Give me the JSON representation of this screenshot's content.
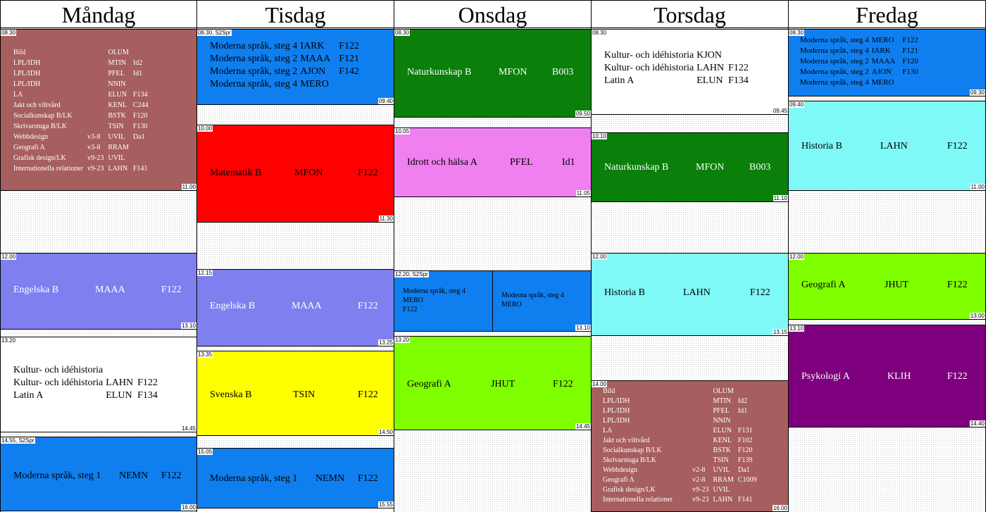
{
  "days": [
    "Måndag",
    "Tisdag",
    "Onsdag",
    "Torsdag",
    "Fredag"
  ],
  "colors": {
    "brown": "#a65e5e",
    "blue": "#0f7ff0",
    "periwinkle": "#7f7ff0",
    "white": "#ffffff",
    "red": "#ff0000",
    "yellow": "#ffff00",
    "green": "#0a7f0a",
    "pink": "#f07ff0",
    "lime": "#7fff00",
    "cyan": "#7ff8f8",
    "purple": "#7f007f"
  },
  "mon": {
    "b1": {
      "start": "08.30",
      "end": "11.00",
      "rows": [
        [
          "Bild",
          "",
          "OLUM",
          ""
        ],
        [
          "LPL/IDH",
          "",
          "MTIN",
          "Id2"
        ],
        [
          "LPL/IDH",
          "",
          "PFEL",
          "Id1"
        ],
        [
          "LPL/IDH",
          "",
          "NNIN",
          ""
        ],
        [
          "LA",
          "",
          "ELUN",
          "F134"
        ],
        [
          "Jakt och viltvård",
          "",
          "KENL",
          "C244"
        ],
        [
          "Socialkunskap B/LK",
          "",
          "BSTK",
          "F120"
        ],
        [
          "Skrivarstuga B/LK",
          "",
          "TSIN",
          "F130"
        ],
        [
          "Webbdesign",
          "v3-8",
          "UVIL",
          "Da1"
        ],
        [
          "Geografi A",
          "v3-8",
          "RRAM",
          ""
        ],
        [
          "Grafisk design/LK",
          "v9-23",
          "UVIL",
          ""
        ],
        [
          "Internationella relationer",
          "v9-23",
          "LAHN",
          "F141"
        ]
      ]
    },
    "b2": {
      "start": "12.00",
      "end": "13.10",
      "subj": "Engelska B",
      "teacher": "MAAA",
      "room": "F122"
    },
    "b3": {
      "start": "13.20",
      "end": "14.45",
      "rows": [
        [
          "Kultur- och idéhistoria",
          "",
          ""
        ],
        [
          "Kultur- och idéhistoria",
          "LAHN",
          "F122"
        ],
        [
          "Latin A",
          "ELUN",
          "F134"
        ]
      ]
    },
    "b4": {
      "start": "14.55, S2Spr",
      "end": "16.00",
      "subj": "Moderna språk, steg 1",
      "teacher": "NEMN",
      "room": "F122"
    }
  },
  "tue": {
    "b1": {
      "start": "08.30, S2Spr",
      "end": "09.40",
      "rows": [
        [
          "Moderna språk, steg 4",
          "IARK",
          "F122"
        ],
        [
          "Moderna språk, steg 2",
          "MAAA",
          "F121"
        ],
        [
          "Moderna språk, steg 2",
          "AJON",
          "F142"
        ],
        [
          "Moderna språk, steg 4",
          "MERO",
          ""
        ]
      ]
    },
    "b2": {
      "start": "10.00",
      "end": "11.30",
      "subj": "Matematik B",
      "teacher": "MFON",
      "room": "F122"
    },
    "b3": {
      "start": "12.15",
      "end": "13.25",
      "subj": "Engelska B",
      "teacher": "MAAA",
      "room": "F122"
    },
    "b4": {
      "start": "13.35",
      "end": "14.50",
      "subj": "Svenska B",
      "teacher": "TSIN",
      "room": "F122"
    },
    "b5": {
      "start": "15.05",
      "end": "15.55",
      "subj": "Moderna språk, steg 1",
      "teacher": "NEMN",
      "room": "F122"
    }
  },
  "wed": {
    "b1": {
      "start": "08.30",
      "end": "09.50",
      "subj": "Naturkunskap B",
      "teacher": "MFON",
      "room": "B003"
    },
    "b2": {
      "start": "10.05",
      "end": "11.05",
      "subj": "Idrott och hälsa A",
      "teacher": "PFEL",
      "room": "Id1"
    },
    "b3": {
      "start": "12.20, S2Spr",
      "end": "13.10",
      "left": [
        "Moderna språk, steg 4",
        "MERO",
        "F122"
      ],
      "right": [
        "Moderna språk, steg 4",
        "MERO"
      ]
    },
    "b4": {
      "start": "13.20",
      "end": "14.45",
      "subj": "Geografi A",
      "teacher": "JHUT",
      "room": "F122"
    }
  },
  "thu": {
    "b1": {
      "start": "08.30",
      "end": "09.45",
      "rows": [
        [
          "Kultur- och idéhistoria",
          "KJON",
          ""
        ],
        [
          "Kultur- och idéhistoria",
          "LAHN",
          "F122"
        ],
        [
          "Latin A",
          "ELUN",
          "F134"
        ]
      ]
    },
    "b2": {
      "start": "10.10",
      "end": "11.10",
      "subj": "Naturkunskap B",
      "teacher": "MFON",
      "room": "B003"
    },
    "b3": {
      "start": "12.00",
      "end": "13.15",
      "subj": "Historia B",
      "teacher": "LAHN",
      "room": "F122"
    },
    "b4": {
      "start": "14.00",
      "end": "16.00",
      "rows": [
        [
          "Bild",
          "",
          "OLUM",
          ""
        ],
        [
          "LPL/IDH",
          "",
          "MTIN",
          "Id2"
        ],
        [
          "LPL/IDH",
          "",
          "PFEL",
          "Id1"
        ],
        [
          "LPL/IDH",
          "",
          "NNIN",
          ""
        ],
        [
          "LA",
          "",
          "ELUN",
          "F131"
        ],
        [
          "Jakt och viltvård",
          "",
          "KENL",
          "F102"
        ],
        [
          "Socialkunskap B/LK",
          "",
          "BSTK",
          "F120"
        ],
        [
          "Skrivarstuga B/LK",
          "",
          "TSIN",
          "F139"
        ],
        [
          "Webbdesign",
          "v2-8",
          "UVIL",
          "Da1"
        ],
        [
          "Geografi A",
          "v2-8",
          "RRAM",
          "C1009"
        ],
        [
          "Grafisk design/LK",
          "v9-23",
          "UVIL",
          ""
        ],
        [
          "Internationella relationer",
          "v9-23",
          "LAHN",
          "F141"
        ]
      ]
    }
  },
  "fri": {
    "b1": {
      "start": "08.30",
      "end": "09.30",
      "rows": [
        [
          "Moderna språk, steg 4",
          "MERO",
          "F122"
        ],
        [
          "Moderna språk, steg 4",
          "IARK",
          "F121"
        ],
        [
          "Moderna språk, steg 2",
          "MAAA",
          "F120"
        ],
        [
          "Moderna språk, steg 2",
          "AJON",
          "F130"
        ],
        [
          "Moderna språk, steg 4",
          "MERO",
          ""
        ]
      ]
    },
    "b2": {
      "start": "09.40",
      "end": "11.00",
      "subj": "Historia B",
      "teacher": "LAHN",
      "room": "F122"
    },
    "b3": {
      "start": "12.00",
      "end": "13.00",
      "subj": "Geografi A",
      "teacher": "JHUT",
      "room": "F122"
    },
    "b4": {
      "start": "13.10",
      "end": "14.40",
      "subj": "Psykologi A",
      "teacher": "KLIH",
      "room": "F122"
    }
  }
}
